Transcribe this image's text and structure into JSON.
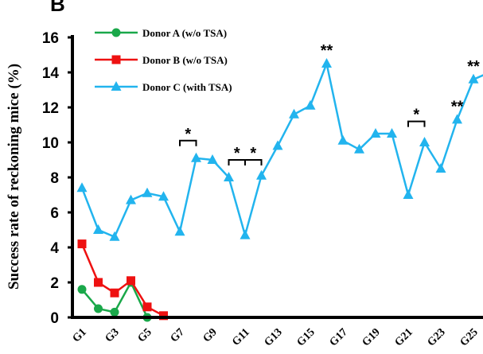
{
  "panel_label": "B",
  "chart_data": {
    "type": "line",
    "ylabel": "Success rate of reckoning mice (%)",
    "xlabel": "",
    "ylim": [
      0,
      16
    ],
    "yticks": [
      0,
      2,
      4,
      6,
      8,
      10,
      12,
      14,
      16
    ],
    "x_tick_labels": [
      "G1",
      "G3",
      "G5",
      "G7",
      "G9",
      "G11",
      "G13",
      "G15",
      "G17",
      "G19",
      "G21",
      "G23",
      "G25"
    ],
    "legend_position": "top-left",
    "series": [
      {
        "name": "Donor A (w/o TSA)",
        "color": "#1aa84a",
        "marker": "circle",
        "x": [
          1,
          2,
          3,
          4,
          5
        ],
        "values": [
          1.6,
          0.5,
          0.3,
          2.0,
          0.0
        ]
      },
      {
        "name": "Donor B (w/o TSA)",
        "color": "#ee1111",
        "marker": "square",
        "x": [
          1,
          2,
          3,
          4,
          5,
          6
        ],
        "values": [
          4.2,
          2.0,
          1.4,
          2.1,
          0.6,
          0.1
        ]
      },
      {
        "name": "Donor C (with TSA)",
        "color": "#22b4ee",
        "marker": "triangle",
        "x": [
          1,
          2,
          3,
          4,
          5,
          6,
          7,
          8,
          9,
          10,
          11,
          12,
          13,
          14,
          15,
          16,
          17,
          18,
          19,
          20,
          21,
          22,
          23,
          24,
          25,
          26
        ],
        "values": [
          7.4,
          5.0,
          4.6,
          6.7,
          7.1,
          6.9,
          4.9,
          9.1,
          9.0,
          8.0,
          4.7,
          8.1,
          9.8,
          11.6,
          12.1,
          14.5,
          10.1,
          9.6,
          10.5,
          10.5,
          7.0,
          10.0,
          8.5,
          11.3,
          13.6,
          14.0
        ]
      }
    ],
    "annotations": [
      {
        "text": "*",
        "type": "bracket",
        "x_from": 7,
        "x_to": 8,
        "y": 10.1
      },
      {
        "text": "*",
        "type": "bracket",
        "x_from": 10,
        "x_to": 11,
        "y": 9.0
      },
      {
        "text": "*",
        "type": "bracket",
        "x_from": 11,
        "x_to": 12,
        "y": 9.0
      },
      {
        "text": "**",
        "type": "point",
        "x": 16,
        "y": 14.5
      },
      {
        "text": "*",
        "type": "bracket",
        "x_from": 21,
        "x_to": 22,
        "y": 11.2
      },
      {
        "text": "**",
        "type": "point",
        "x": 24,
        "y": 11.3
      },
      {
        "text": "**",
        "type": "point",
        "x": 25,
        "y": 13.6
      }
    ]
  }
}
